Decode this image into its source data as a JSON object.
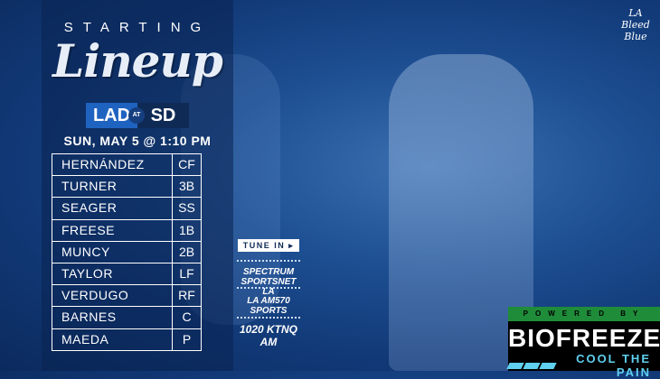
{
  "header": {
    "starting": "STARTING",
    "lineup": "Lineup"
  },
  "matchup": {
    "away": "LAD",
    "at": "AT",
    "home": "SD"
  },
  "date": "SUN, MAY 5 @ 1:10 PM",
  "lineup": [
    {
      "name": "HERNÁNDEZ",
      "pos": "CF"
    },
    {
      "name": "TURNER",
      "pos": "3B"
    },
    {
      "name": "SEAGER",
      "pos": "SS"
    },
    {
      "name": "FREESE",
      "pos": "1B"
    },
    {
      "name": "MUNCY",
      "pos": "2B"
    },
    {
      "name": "TAYLOR",
      "pos": "LF"
    },
    {
      "name": "VERDUGO",
      "pos": "RF"
    },
    {
      "name": "BARNES",
      "pos": "C"
    },
    {
      "name": "MAEDA",
      "pos": "P"
    }
  ],
  "tune_in": {
    "label": "TUNE IN ▸",
    "stations": [
      "SPECTRUM SPORTSNET LA",
      "LA AM570 SPORTS",
      "1020 KTNQ AM"
    ]
  },
  "brand_logo": "LA Bleed Blue",
  "sponsor": {
    "powered_by": "POWERED BY",
    "name": "BIOFREEZE",
    "tagline": "COOL THE PAIN"
  },
  "colors": {
    "background": "#1d4f92",
    "accent_blue": "#1f63c0",
    "sponsor_green": "#1f8c3a",
    "sponsor_cyan": "#5fd0f0"
  }
}
